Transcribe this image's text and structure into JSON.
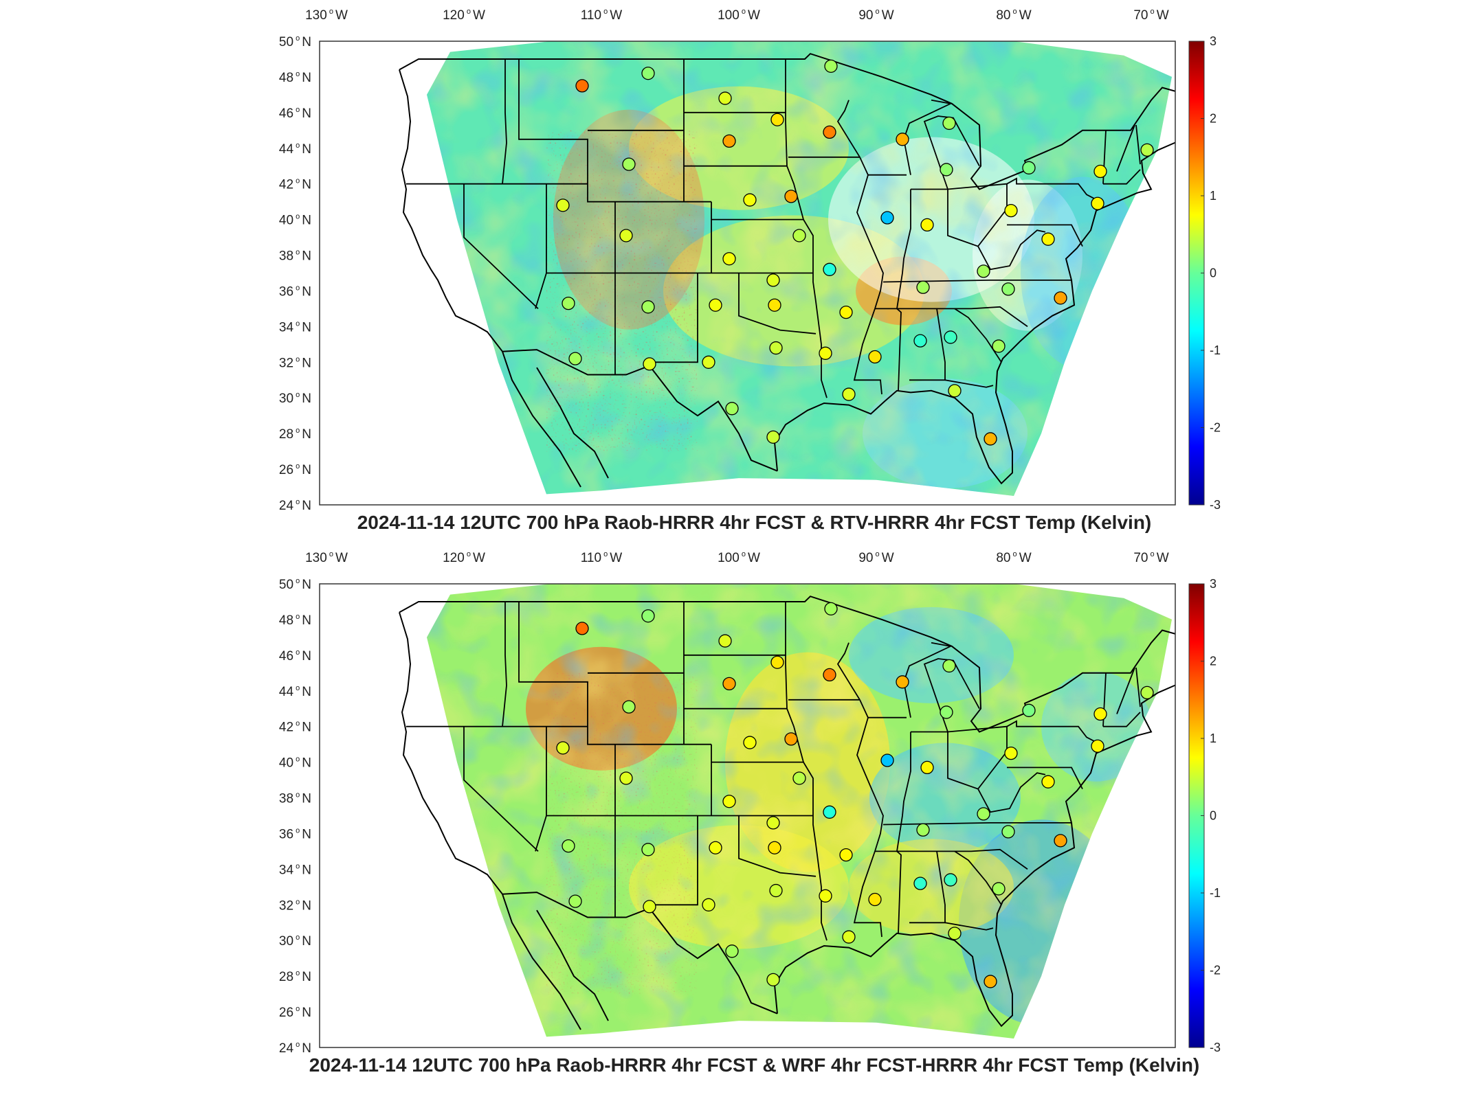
{
  "panels": [
    {
      "title": "2024-11-14 12UTC 700 hPa Raob-HRRR 4hr FCST & RTV-HRRR 4hr FCST Temp (Kelvin)",
      "lon_ticks": [
        "130",
        "120",
        "110",
        "100",
        "90",
        "80",
        "70"
      ],
      "lon_suffix": "W",
      "lat_ticks": [
        "50",
        "48",
        "46",
        "44",
        "42",
        "40",
        "38",
        "36",
        "34",
        "32",
        "30",
        "28",
        "26",
        "24"
      ],
      "lat_suffix": "N",
      "colorbar_ticks": [
        "3",
        "2",
        "1",
        "0",
        "-1",
        "-2",
        "-3"
      ],
      "field_style": "rtv"
    },
    {
      "title": "2024-11-14 12UTC 700 hPa Raob-HRRR 4hr FCST & WRF 4hr FCST-HRRR 4hr FCST Temp (Kelvin)",
      "lon_ticks": [
        "130",
        "120",
        "110",
        "100",
        "90",
        "80",
        "70"
      ],
      "lon_suffix": "W",
      "lat_ticks": [
        "50",
        "48",
        "46",
        "44",
        "42",
        "40",
        "38",
        "36",
        "34",
        "32",
        "30",
        "28",
        "26",
        "24"
      ],
      "lat_suffix": "N",
      "colorbar_ticks": [
        "3",
        "2",
        "1",
        "0",
        "-1",
        "-2",
        "-3"
      ],
      "field_style": "wrf"
    }
  ],
  "colorbar": {
    "min": -3,
    "max": 3,
    "colormap": "jet"
  },
  "raob_stations": [
    {
      "lon": -111.4,
      "lat": 47.5,
      "v": 1.6
    },
    {
      "lon": -106.6,
      "lat": 48.2,
      "v": 0.2
    },
    {
      "lon": -101.0,
      "lat": 46.8,
      "v": 0.6
    },
    {
      "lon": -97.2,
      "lat": 45.6,
      "v": 0.9
    },
    {
      "lon": -93.4,
      "lat": 44.9,
      "v": 1.5
    },
    {
      "lon": -100.7,
      "lat": 44.4,
      "v": 1.3
    },
    {
      "lon": -108.0,
      "lat": 43.1,
      "v": 0.3
    },
    {
      "lon": -112.8,
      "lat": 40.8,
      "v": 0.6
    },
    {
      "lon": -108.2,
      "lat": 39.1,
      "v": 0.6
    },
    {
      "lon": -99.2,
      "lat": 41.1,
      "v": 0.7
    },
    {
      "lon": -96.2,
      "lat": 41.3,
      "v": 1.3
    },
    {
      "lon": -100.7,
      "lat": 37.8,
      "v": 0.7
    },
    {
      "lon": -95.6,
      "lat": 39.1,
      "v": 0.4
    },
    {
      "lon": -93.4,
      "lat": 37.2,
      "v": -0.5
    },
    {
      "lon": -97.5,
      "lat": 36.6,
      "v": 0.6
    },
    {
      "lon": -101.7,
      "lat": 35.2,
      "v": 0.7
    },
    {
      "lon": -97.4,
      "lat": 35.2,
      "v": 0.9
    },
    {
      "lon": -106.6,
      "lat": 35.1,
      "v": 0.3
    },
    {
      "lon": -112.4,
      "lat": 35.3,
      "v": 0.3
    },
    {
      "lon": -111.9,
      "lat": 32.2,
      "v": 0.3
    },
    {
      "lon": -106.5,
      "lat": 31.9,
      "v": 0.6
    },
    {
      "lon": -102.2,
      "lat": 32.0,
      "v": 0.6
    },
    {
      "lon": -97.3,
      "lat": 32.8,
      "v": 0.5
    },
    {
      "lon": -100.5,
      "lat": 29.4,
      "v": 0.3
    },
    {
      "lon": -97.5,
      "lat": 27.8,
      "v": 0.5
    },
    {
      "lon": -92.2,
      "lat": 34.8,
      "v": 0.8
    },
    {
      "lon": -93.7,
      "lat": 32.5,
      "v": 0.7
    },
    {
      "lon": -92.0,
      "lat": 30.2,
      "v": 0.6
    },
    {
      "lon": -90.1,
      "lat": 32.3,
      "v": 0.9
    },
    {
      "lon": -86.8,
      "lat": 33.2,
      "v": -0.4
    },
    {
      "lon": -84.6,
      "lat": 33.4,
      "v": -0.3
    },
    {
      "lon": -86.6,
      "lat": 36.2,
      "v": 0.3
    },
    {
      "lon": -82.2,
      "lat": 37.1,
      "v": 0.3
    },
    {
      "lon": -80.4,
      "lat": 36.1,
      "v": 0.2
    },
    {
      "lon": -81.1,
      "lat": 32.9,
      "v": 0.3
    },
    {
      "lon": -84.3,
      "lat": 30.4,
      "v": 0.5
    },
    {
      "lon": -81.7,
      "lat": 27.7,
      "v": 1.2
    },
    {
      "lon": -89.2,
      "lat": 40.1,
      "v": -1.1
    },
    {
      "lon": -86.3,
      "lat": 39.7,
      "v": 0.8
    },
    {
      "lon": -84.9,
      "lat": 42.8,
      "v": 0.2
    },
    {
      "lon": -88.1,
      "lat": 44.5,
      "v": 1.2
    },
    {
      "lon": -84.7,
      "lat": 45.4,
      "v": 0.3
    },
    {
      "lon": -80.2,
      "lat": 40.5,
      "v": 0.7
    },
    {
      "lon": -77.5,
      "lat": 38.9,
      "v": 0.8
    },
    {
      "lon": -76.6,
      "lat": 35.6,
      "v": 1.3
    },
    {
      "lon": -73.9,
      "lat": 40.9,
      "v": 0.8
    },
    {
      "lon": -73.7,
      "lat": 42.7,
      "v": 0.8
    },
    {
      "lon": -70.3,
      "lat": 43.9,
      "v": 0.4
    },
    {
      "lon": -78.9,
      "lat": 42.9,
      "v": 0.1
    },
    {
      "lon": -93.3,
      "lat": 48.6,
      "v": 0.3
    }
  ]
}
